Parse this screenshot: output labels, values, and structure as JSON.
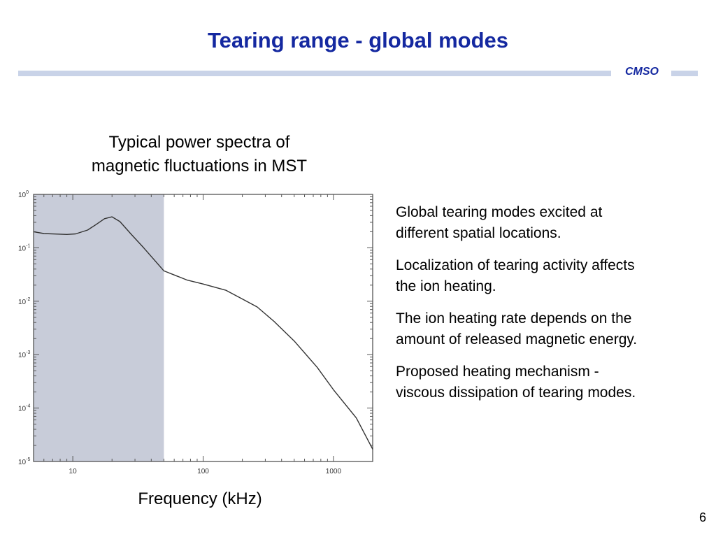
{
  "slide": {
    "title": "Tearing range - global modes",
    "brand": "CMSO",
    "page_number": "6",
    "accent_color": "#1428a0",
    "rule_color": "#c9d3e8"
  },
  "caption": {
    "line1": "Typical power spectra of",
    "line2": "magnetic fluctuations in MST"
  },
  "bullets": [
    {
      "line1": "Global tearing modes excited at",
      "line2": "different spatial locations."
    },
    {
      "line1": "Localization of tearing activity affects",
      "line2": "the ion heating."
    },
    {
      "line1": "The ion heating rate depends on the",
      "line2": "amount of released magnetic energy."
    },
    {
      "line1": "Proposed heating mechanism -",
      "line2": "viscous dissipation of tearing modes."
    }
  ],
  "chart_data": {
    "type": "line",
    "title": "",
    "xlabel": "Frequency (kHz)",
    "ylabel": "",
    "xscale": "log",
    "yscale": "log",
    "xlim": [
      5,
      2000
    ],
    "ylim": [
      1e-05,
      1
    ],
    "x_ticks": [
      10,
      100,
      1000
    ],
    "x_tick_labels": [
      "10",
      "100",
      "1000"
    ],
    "y_ticks": [
      1,
      0.1,
      0.01,
      0.001,
      0.0001,
      1e-05
    ],
    "y_tick_labels": [
      {
        "base": "10",
        "exp": "0"
      },
      {
        "base": "10",
        "exp": "-1"
      },
      {
        "base": "10",
        "exp": "-2"
      },
      {
        "base": "10",
        "exp": "-3"
      },
      {
        "base": "10",
        "exp": "-4"
      },
      {
        "base": "10",
        "exp": "-5"
      }
    ],
    "grid": false,
    "shaded_region": {
      "x_from": 5,
      "x_to": 50,
      "color": "#c8ccd9"
    },
    "series": [
      {
        "color": "#333333",
        "x": [
          5,
          6,
          9,
          10.5,
          13,
          15,
          17.5,
          20,
          23,
          28,
          35,
          50,
          75,
          100,
          150,
          200,
          260,
          350,
          500,
          750,
          1000,
          1500,
          2000
        ],
        "y": [
          0.2,
          0.185,
          0.178,
          0.182,
          0.215,
          0.27,
          0.35,
          0.38,
          0.31,
          0.18,
          0.1,
          0.037,
          0.025,
          0.021,
          0.016,
          0.011,
          0.0078,
          0.0042,
          0.0018,
          0.00058,
          0.00022,
          6.5e-05,
          1.7e-05
        ]
      }
    ]
  }
}
